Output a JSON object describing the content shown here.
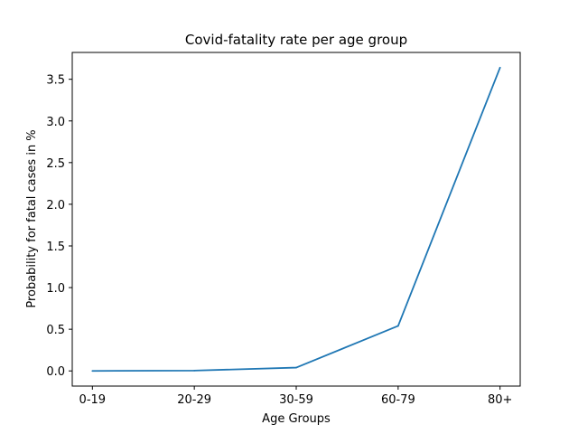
{
  "chart_data": {
    "type": "line",
    "title": "Covid-fatality rate per age group",
    "xlabel": "Age Groups",
    "ylabel": "Probability for fatal cases in %",
    "categories": [
      "0-19",
      "20-29",
      "30-59",
      "60-79",
      "80+"
    ],
    "series": [
      {
        "values": [
          0.0,
          0.004,
          0.04,
          0.54,
          3.64
        ],
        "color": "#1f77b4"
      }
    ],
    "yticks": [
      0.0,
      0.5,
      1.0,
      1.5,
      2.0,
      2.5,
      3.0,
      3.5
    ],
    "ytick_labels": [
      "0.0",
      "0.5",
      "1.0",
      "1.5",
      "2.0",
      "2.5",
      "3.0",
      "3.5"
    ],
    "ylim": [
      -0.182,
      3.822
    ],
    "grid": false,
    "legend": false
  }
}
